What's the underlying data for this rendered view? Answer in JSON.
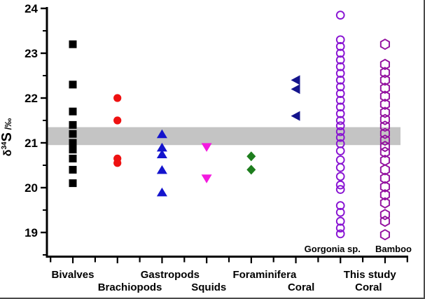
{
  "chart_data": {
    "type": "scatter",
    "title": "",
    "xlabel": "",
    "ylabel": "δ34S /‰",
    "ylabel_parts": {
      "symbol": "δ",
      "superscript": "34",
      "element": "S",
      "unit": " /‰"
    },
    "ylim": [
      18.45,
      24
    ],
    "yticks_major": [
      24,
      23,
      22,
      21,
      20,
      19
    ],
    "yticks_minor": [
      23.5,
      22.5,
      21.5,
      20.5,
      19.5,
      18.5
    ],
    "grid": false,
    "legend": "none",
    "reference_band": {
      "ymin": 20.95,
      "ymax": 21.35,
      "color": "#c4c4c4"
    },
    "categories": [
      "Bivalves",
      "Brachiopods",
      "Gastropods",
      "Squids",
      "Foraminifera",
      "Coral",
      "Gorgonia sp.",
      "Bamboo"
    ],
    "series": [
      {
        "name": "Bivalves",
        "marker": "square",
        "fill": "solid",
        "color": "#000000",
        "values": [
          23.2,
          22.3,
          21.7,
          21.4,
          21.2,
          21.0,
          20.85,
          20.65,
          20.4,
          20.1
        ]
      },
      {
        "name": "Brachiopods",
        "marker": "circle",
        "fill": "solid",
        "color": "#ee1111",
        "values": [
          22.0,
          21.5,
          20.65,
          20.55
        ]
      },
      {
        "name": "Gastropods",
        "marker": "triangle-up",
        "fill": "solid",
        "color": "#1414cd",
        "values": [
          21.2,
          20.9,
          20.75,
          20.4,
          19.9
        ]
      },
      {
        "name": "Squids",
        "marker": "triangle-down",
        "fill": "solid",
        "color": "#f31adf",
        "values": [
          20.9,
          20.2
        ]
      },
      {
        "name": "Foraminifera",
        "marker": "diamond",
        "fill": "solid",
        "color": "#1d7d1d",
        "values": [
          20.7,
          20.4
        ]
      },
      {
        "name": "Coral",
        "marker": "triangle-left",
        "fill": "solid",
        "color": "#14148c",
        "values": [
          22.4,
          22.2,
          21.6
        ]
      },
      {
        "name": "Gorgonia sp.",
        "marker": "open-circle",
        "fill": "open",
        "color": "#8812d2",
        "values": [
          23.85,
          23.3,
          23.15,
          23.0,
          22.85,
          22.7,
          22.55,
          22.4,
          22.25,
          22.1,
          21.95,
          21.8,
          21.65,
          21.5,
          21.38,
          21.25,
          21.12,
          20.98,
          20.82,
          20.62,
          20.45,
          20.25,
          20.06,
          19.96,
          19.6,
          19.45,
          19.25,
          19.1,
          18.97
        ]
      },
      {
        "name": "Bamboo",
        "marker": "open-hexagon",
        "fill": "open",
        "color": "#93109f",
        "values": [
          23.2,
          22.75,
          22.57,
          22.4,
          22.22,
          22.04,
          21.86,
          21.68,
          21.52,
          21.37,
          21.21,
          21.06,
          20.92,
          20.79,
          20.61,
          20.4,
          20.21,
          20.02,
          19.84,
          19.66,
          19.4,
          19.25,
          18.95
        ]
      }
    ],
    "x_axis_labels": [
      {
        "text": "Bivalves",
        "row": 1,
        "anchor": 0
      },
      {
        "text": "Brachiopods",
        "row": 2,
        "anchor": 1.28
      },
      {
        "text": "Gastropods",
        "row": 1,
        "anchor": 2.18
      },
      {
        "text": "Squids",
        "row": 2,
        "anchor": 3.05
      },
      {
        "text": "Foraminifera",
        "row": 1,
        "anchor": 4.3
      },
      {
        "text": "Coral",
        "row": 2,
        "anchor": 5.12
      },
      {
        "text": "This study",
        "row": 1,
        "anchor": 6.66
      },
      {
        "text": "Coral",
        "row": 2,
        "anchor": 6.63
      }
    ],
    "in_plot_labels": [
      {
        "text": "Gorgonia sp.",
        "anchor": 5.82
      },
      {
        "text": "Bamboo",
        "anchor": 7.19
      }
    ]
  }
}
